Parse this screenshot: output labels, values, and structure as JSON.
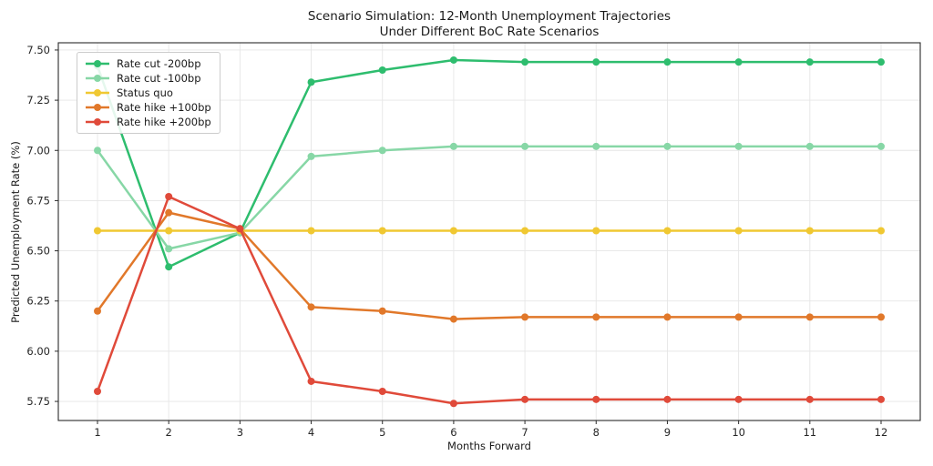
{
  "title": {
    "line1": "Scenario Simulation: 12-Month Unemployment Trajectories",
    "line2": "Under Different BoC Rate Scenarios"
  },
  "chart_data": {
    "type": "line",
    "title": "Scenario Simulation: 12-Month Unemployment Trajectories\nUnder Different BoC Rate Scenarios",
    "xlabel": "Months Forward",
    "ylabel": "Predicted Unemployment Rate (%)",
    "x": [
      1,
      2,
      3,
      4,
      5,
      6,
      7,
      8,
      9,
      10,
      11,
      12
    ],
    "xticks": [
      1,
      2,
      3,
      4,
      5,
      6,
      7,
      8,
      9,
      10,
      11,
      12
    ],
    "yticks": [
      5.75,
      6.0,
      6.25,
      6.5,
      6.75,
      7.0,
      7.25,
      7.5
    ],
    "xlim": [
      0.45,
      12.55
    ],
    "ylim": [
      5.655,
      7.536
    ],
    "grid": true,
    "legend_position": "upper left",
    "series": [
      {
        "name": "Rate cut -200bp",
        "color": "#2ebd6e",
        "values": [
          7.42,
          6.42,
          6.59,
          7.34,
          7.4,
          7.45,
          7.44,
          7.44,
          7.44,
          7.44,
          7.44,
          7.44
        ]
      },
      {
        "name": "Rate cut -100bp",
        "color": "#87d7a6",
        "values": [
          7.0,
          6.51,
          6.59,
          6.97,
          7.0,
          7.02,
          7.02,
          7.02,
          7.02,
          7.02,
          7.02,
          7.02
        ]
      },
      {
        "name": "Status quo",
        "color": "#f0c832",
        "values": [
          6.6,
          6.6,
          6.6,
          6.6,
          6.6,
          6.6,
          6.6,
          6.6,
          6.6,
          6.6,
          6.6,
          6.6
        ]
      },
      {
        "name": "Rate hike +100bp",
        "color": "#e1782a",
        "values": [
          6.2,
          6.69,
          6.61,
          6.22,
          6.2,
          6.16,
          6.17,
          6.17,
          6.17,
          6.17,
          6.17,
          6.17
        ]
      },
      {
        "name": "Rate hike +200bp",
        "color": "#e04a3a",
        "values": [
          5.8,
          6.77,
          6.61,
          5.85,
          5.8,
          5.74,
          5.76,
          5.76,
          5.76,
          5.76,
          5.76,
          5.76
        ]
      }
    ]
  },
  "style": {
    "grid_color": "#e6e6e6",
    "spine_color": "#2b2b2b",
    "tick_label_color": "#262626",
    "line_width": 2.5,
    "marker_radius": 4
  }
}
